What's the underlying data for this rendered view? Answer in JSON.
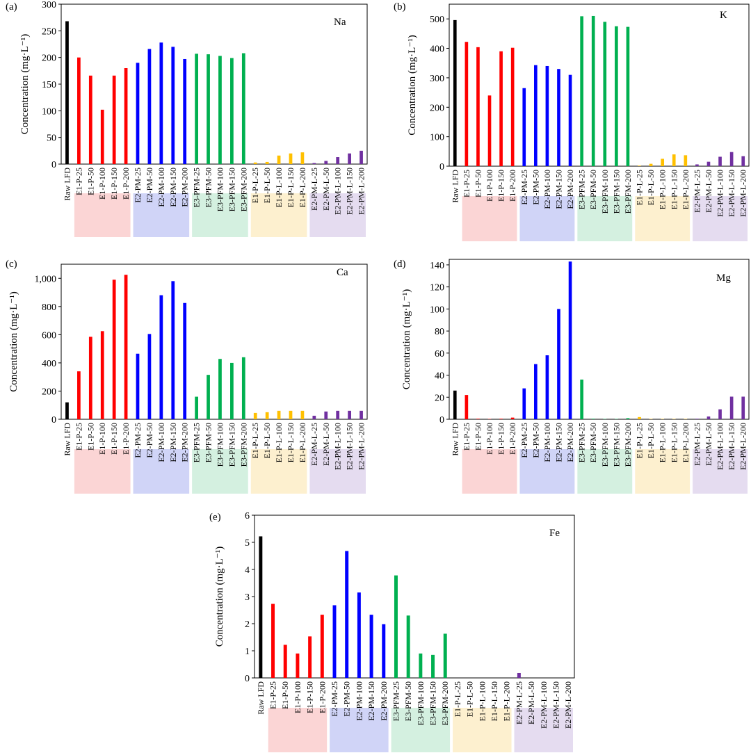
{
  "categories": [
    "Raw LFD",
    "E1-P-25",
    "E1-P-50",
    "E1-P-100",
    "E1-P-150",
    "E1-P-200",
    "E2-PM-25",
    "E2-PM-50",
    "E2-PM-100",
    "E2-PM-150",
    "E2-PM-200",
    "E3-PFM-25",
    "E3-PFM-50",
    "E3-PFM-100",
    "E3-PFM-150",
    "E3-PFM-200",
    "E1-P-L-25",
    "E1-P-L-50",
    "E1-P-L-100",
    "E1-P-L-150",
    "E1-P-L-200",
    "E2-PM-L-25",
    "E2-PM-L-50",
    "E2-PM-L-100",
    "E2-PM-L-150",
    "E2-PM-L-200"
  ],
  "colors": {
    "bars": [
      "#000000",
      "#ff0000",
      "#ff0000",
      "#ff0000",
      "#ff0000",
      "#ff0000",
      "#0000ff",
      "#0000ff",
      "#0000ff",
      "#0000ff",
      "#0000ff",
      "#00b050",
      "#00b050",
      "#00b050",
      "#00b050",
      "#00b050",
      "#ffc000",
      "#ffc000",
      "#ffc000",
      "#ffc000",
      "#ffc000",
      "#7030a0",
      "#7030a0",
      "#7030a0",
      "#7030a0",
      "#7030a0"
    ],
    "groups": [
      "#fbd5d5",
      "#d0d4f7",
      "#d4f0e0",
      "#fdf0cf",
      "#e5dcf0"
    ]
  },
  "chart_data": [
    {
      "type": "bar",
      "panel": "(a)",
      "element": "Na",
      "ylabel": "Concentration (mg·L⁻¹)",
      "ylim": [
        0,
        300
      ],
      "yticks": [
        0,
        50,
        100,
        150,
        200,
        250,
        300
      ],
      "ytick_labels": [
        "0",
        "50",
        "100",
        "150",
        "200",
        "250",
        "300"
      ],
      "values": [
        268,
        200,
        166,
        102,
        166,
        180,
        190,
        216,
        228,
        220,
        197,
        207,
        206,
        203,
        199,
        208,
        3,
        4,
        16,
        20,
        22,
        2,
        6,
        13,
        20,
        25
      ]
    },
    {
      "type": "bar",
      "panel": "(b)",
      "element": "K",
      "ylabel": "Concentration (mg·L⁻¹)",
      "ylim": [
        0,
        550
      ],
      "yticks": [
        0,
        100,
        200,
        300,
        400,
        500
      ],
      "ytick_labels": [
        "0",
        "100",
        "200",
        "300",
        "400",
        "500"
      ],
      "values": [
        496,
        422,
        404,
        240,
        390,
        402,
        265,
        343,
        340,
        330,
        310,
        509,
        510,
        490,
        475,
        473,
        2,
        8,
        25,
        40,
        37,
        6,
        15,
        32,
        48,
        34
      ]
    },
    {
      "type": "bar",
      "panel": "(c)",
      "element": "Ca",
      "ylabel": "Concentration (mg·L⁻¹)",
      "ylim": [
        0,
        1100
      ],
      "yticks": [
        0,
        200,
        400,
        600,
        800,
        1000
      ],
      "ytick_labels": [
        "0",
        "200",
        "400",
        "600",
        "800",
        "1,000"
      ],
      "values": [
        120,
        340,
        585,
        625,
        990,
        1025,
        465,
        605,
        880,
        980,
        825,
        160,
        315,
        428,
        400,
        440,
        45,
        50,
        60,
        60,
        60,
        25,
        55,
        60,
        60,
        60
      ]
    },
    {
      "type": "bar",
      "panel": "(d)",
      "element": "Mg",
      "ylabel": "Concentration (mg·L⁻¹)",
      "ylim": [
        0,
        145
      ],
      "yticks": [
        0,
        20,
        40,
        60,
        80,
        100,
        120,
        140
      ],
      "ytick_labels": [
        "0",
        "20",
        "40",
        "60",
        "80",
        "100",
        "120",
        "140"
      ],
      "values": [
        26,
        22,
        0.5,
        0.3,
        0.5,
        1.5,
        28,
        50,
        58,
        100,
        143,
        36,
        0.5,
        0.3,
        0.3,
        1,
        2,
        0.3,
        0.3,
        0.3,
        0.3,
        0.5,
        2.5,
        9,
        20.5,
        20.5
      ]
    },
    {
      "type": "bar",
      "panel": "(e)",
      "element": "Fe",
      "ylabel": "Concentration (mg·L⁻¹)",
      "ylim": [
        0,
        6
      ],
      "yticks": [
        0,
        1,
        2,
        3,
        4,
        5,
        6
      ],
      "ytick_labels": [
        "0",
        "1",
        "2",
        "3",
        "4",
        "5",
        "6"
      ],
      "values": [
        5.22,
        2.73,
        1.22,
        0.9,
        1.53,
        2.33,
        2.68,
        4.68,
        3.15,
        2.33,
        1.98,
        3.78,
        2.3,
        0.9,
        0.85,
        1.63,
        0,
        0,
        0,
        0,
        0,
        0.18,
        0,
        0,
        0,
        0
      ]
    }
  ]
}
